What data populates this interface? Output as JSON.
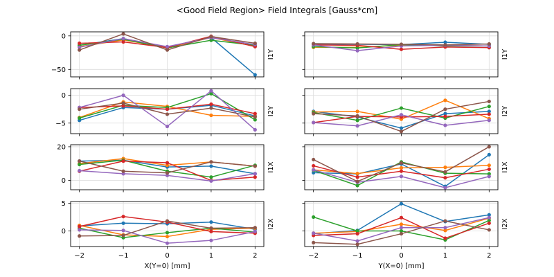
{
  "figure": {
    "background": "#ffffff"
  },
  "chart_data": {
    "type": "line",
    "title": "<Good Field Region> Field Integrals [Gauss*cm]",
    "legend": "none",
    "grid_on": true,
    "grid_color": "#dcdcdc",
    "axis_color": "#000000",
    "x": [
      -2,
      -1,
      0,
      1,
      2
    ],
    "xlim": [
      -2.2,
      2.2
    ],
    "x_ticks": [
      {
        "value": -2,
        "label": "−2"
      },
      {
        "value": -1,
        "label": "−1"
      },
      {
        "value": 0,
        "label": "0"
      },
      {
        "value": 1,
        "label": "1"
      },
      {
        "value": 2,
        "label": "2"
      }
    ],
    "columns": [
      {
        "xlabel": "X(Y=0) [mm]"
      },
      {
        "xlabel": "Y(X=0) [mm]"
      }
    ],
    "rows": [
      {
        "label": "I1Y",
        "ylim": [
          -61,
          6
        ],
        "yticks": [
          {
            "value": 0,
            "label": "0"
          },
          {
            "value": -50,
            "label": "−50"
          }
        ]
      },
      {
        "label": "I2Y",
        "ylim": [
          -6.9,
          1.2
        ],
        "yticks": [
          {
            "value": 0,
            "label": "0"
          },
          {
            "value": -5,
            "label": "−5"
          }
        ]
      },
      {
        "label": "I1X",
        "ylim": [
          -5.5,
          21.2
        ],
        "yticks": [
          {
            "value": 20,
            "label": "20"
          },
          {
            "value": 0,
            "label": "0"
          }
        ]
      },
      {
        "label": "I2X",
        "ylim": [
          -2.8,
          5.3
        ],
        "yticks": [
          {
            "value": 5,
            "label": "5"
          },
          {
            "value": 0,
            "label": "0"
          }
        ]
      }
    ],
    "series_colors": [
      "#1f77b4",
      "#ff7f0e",
      "#2ca02c",
      "#d62728",
      "#9467bd",
      "#8c564b"
    ],
    "series_names": [
      "series-blue",
      "series-orange",
      "series-green",
      "series-red",
      "series-purple",
      "series-brown"
    ],
    "subplots": [
      {
        "row": 0,
        "col": 0,
        "name": "I1Y-vs-X",
        "series": [
          [
            -14,
            -4,
            -17,
            -2.5,
            -58
          ],
          [
            -16,
            -6,
            -17.5,
            -2.5,
            -15.5
          ],
          [
            -14,
            -5,
            -18,
            -6.5,
            -14
          ],
          [
            -11,
            -9,
            -17.5,
            -0.5,
            -16
          ],
          [
            -17,
            -4,
            -16,
            -2.5,
            -13
          ],
          [
            -21,
            3,
            -21,
            -1,
            -11
          ]
        ]
      },
      {
        "row": 0,
        "col": 1,
        "name": "I1Y-vs-Y",
        "series": [
          [
            -12,
            -12.5,
            -13,
            -9.5,
            -12.5
          ],
          [
            -17,
            -17,
            -14,
            -14,
            -15
          ],
          [
            -16,
            -18,
            -13,
            -15,
            -15
          ],
          [
            -13.5,
            -14,
            -20,
            -16.5,
            -17.5
          ],
          [
            -13.5,
            -22,
            -15,
            -14,
            -15
          ],
          [
            -11.5,
            -12,
            -12.5,
            -13.5,
            -12
          ]
        ]
      },
      {
        "row": 1,
        "col": 0,
        "name": "I2Y-vs-X",
        "series": [
          [
            -4.5,
            -2.2,
            -2.5,
            -1.8,
            -3.7
          ],
          [
            -4.0,
            -1.2,
            -2.0,
            -3.6,
            -3.8
          ],
          [
            -4.1,
            -1.8,
            -2.2,
            0.3,
            -4.4
          ],
          [
            -2.2,
            -1.9,
            -2.5,
            -1.6,
            -3.3
          ],
          [
            -2.2,
            0.0,
            -5.6,
            0.8,
            -6.2
          ],
          [
            -2.5,
            -1.4,
            -3.4,
            -2.3,
            -3.9
          ]
        ]
      },
      {
        "row": 1,
        "col": 1,
        "name": "I2Y-vs-Y",
        "series": [
          [
            -2.9,
            -3.9,
            -5.9,
            -3.3,
            -2.9
          ],
          [
            -3.0,
            -2.9,
            -4.3,
            -0.9,
            -4.2
          ],
          [
            -3.1,
            -4.5,
            -2.3,
            -4.1,
            -2.0
          ],
          [
            -4.9,
            -3.8,
            -3.9,
            -3.8,
            -3.4
          ],
          [
            -4.9,
            -5.5,
            -3.5,
            -5.4,
            -4.5
          ],
          [
            -3.3,
            -3.7,
            -6.5,
            -2.5,
            -1.1
          ]
        ]
      },
      {
        "row": 2,
        "col": 0,
        "name": "I1X-vs-X",
        "series": [
          [
            11.5,
            12,
            8,
            8.5,
            4
          ],
          [
            10,
            13,
            9,
            11,
            8.5
          ],
          [
            9.5,
            12,
            5.5,
            2,
            9
          ],
          [
            5.5,
            11.5,
            10.5,
            0,
            2
          ],
          [
            5.8,
            4,
            3,
            -0.3,
            4
          ],
          [
            11.5,
            5.5,
            4.5,
            11,
            8.5
          ]
        ]
      },
      {
        "row": 2,
        "col": 1,
        "name": "I1X-vs-Y",
        "series": [
          [
            4.6,
            3.9,
            9.8,
            -3.5,
            15.3
          ],
          [
            6.3,
            4.1,
            7.5,
            7.8,
            9.0
          ],
          [
            6.0,
            -3.0,
            11,
            4.3,
            3.9
          ],
          [
            8.7,
            2.0,
            5.5,
            1.6,
            6.7
          ],
          [
            6.3,
            -1.1,
            2.4,
            -4.3,
            2.4
          ],
          [
            12.4,
            -0.6,
            10.4,
            5.1,
            20
          ]
        ]
      },
      {
        "row": 3,
        "col": 0,
        "name": "I2X-vs-X",
        "series": [
          [
            0.9,
            1.4,
            1.3,
            1.6,
            0.3
          ],
          [
            1.0,
            -0.7,
            -1.0,
            0.3,
            0.5
          ],
          [
            0.5,
            -1.2,
            -0.3,
            0.5,
            -0.2
          ],
          [
            0.8,
            2.6,
            1.6,
            -0.1,
            -0.4
          ],
          [
            0.2,
            0.1,
            -2.2,
            -1.7,
            -0.1
          ],
          [
            -0.9,
            -0.8,
            1.8,
            0.5,
            0.6
          ]
        ]
      },
      {
        "row": 3,
        "col": 1,
        "name": "I2X-vs-Y",
        "series": [
          [
            -0.5,
            0.1,
            4.9,
            1.7,
            2.9
          ],
          [
            -0.4,
            -0.1,
            1.2,
            0.1,
            2.3
          ],
          [
            2.5,
            0.0,
            0.0,
            -1.6,
            1.9
          ],
          [
            -0.8,
            -0.5,
            2.4,
            -1.3,
            1.4
          ],
          [
            -0.4,
            -1.8,
            0.6,
            0.6,
            2.4
          ],
          [
            -2.1,
            -2.4,
            -0.5,
            1.8,
            0.2
          ]
        ]
      }
    ]
  }
}
